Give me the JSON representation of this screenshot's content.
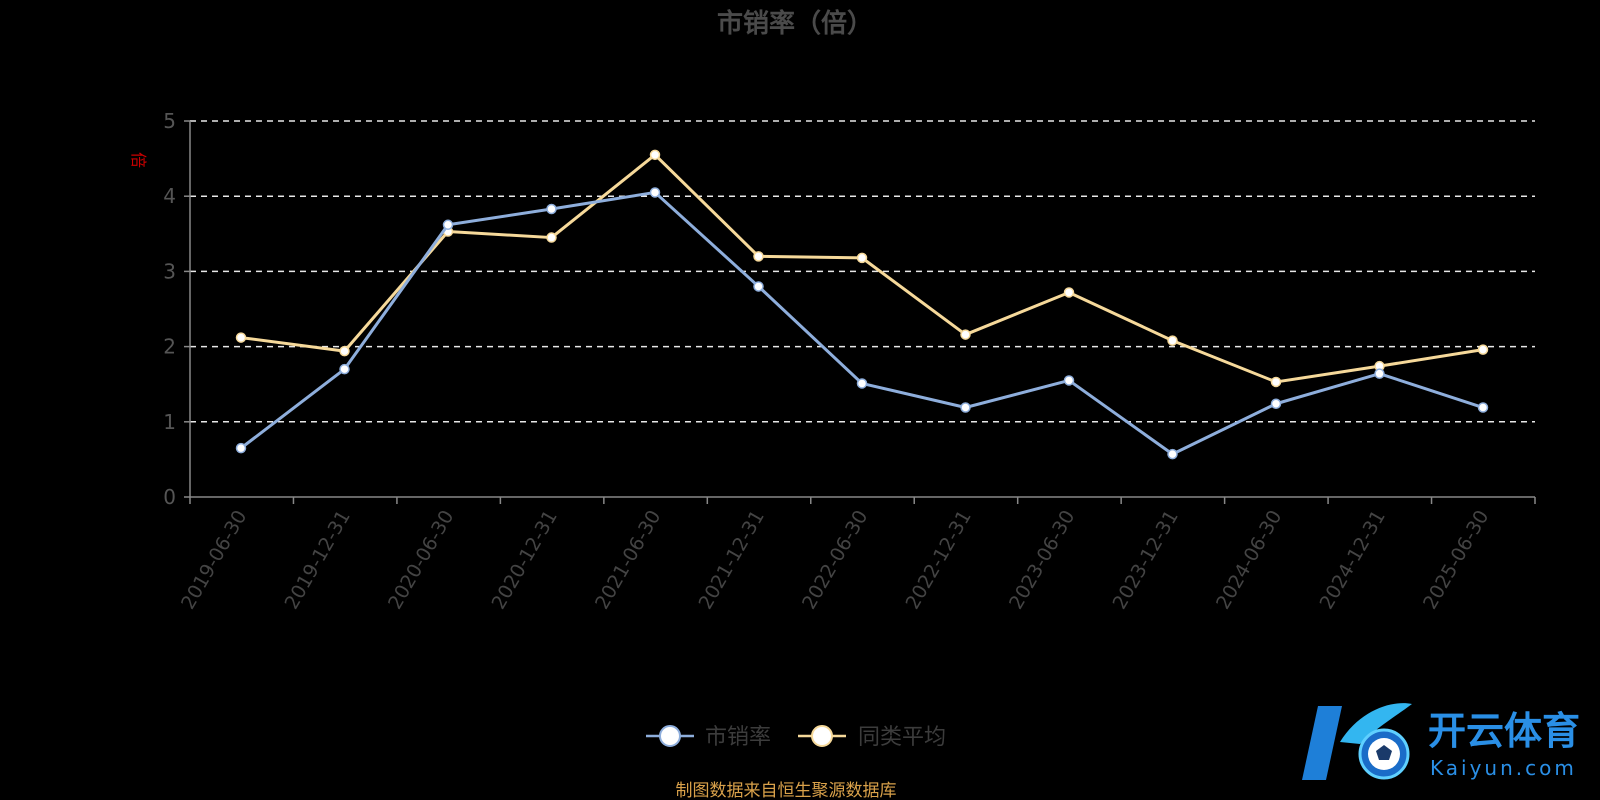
{
  "chart_data": {
    "type": "line",
    "title": "市销率（倍）",
    "y_unit_label": "倍",
    "ylim": [
      0,
      5
    ],
    "y_ticks": [
      "0",
      "1",
      "2",
      "3",
      "4",
      "5"
    ],
    "grid": true,
    "legend_position": "bottom-center",
    "categories": [
      "2019-06-30",
      "2019-12-31",
      "2020-06-30",
      "2020-12-31",
      "2021-06-30",
      "2021-12-31",
      "2022-06-30",
      "2022-12-31",
      "2023-06-30",
      "2023-12-31",
      "2024-06-30",
      "2024-12-31",
      "2025-06-30"
    ],
    "series": [
      {
        "name": "市销率",
        "color": "#8eaedc",
        "values": [
          0.65,
          1.7,
          3.62,
          3.83,
          4.05,
          2.8,
          1.51,
          1.19,
          1.55,
          0.57,
          1.24,
          1.64,
          1.19
        ]
      },
      {
        "name": "同类平均",
        "color": "#f6d99a",
        "values": [
          2.12,
          1.94,
          3.53,
          3.45,
          4.55,
          3.2,
          3.18,
          2.16,
          2.72,
          2.08,
          1.53,
          1.74,
          1.96
        ]
      }
    ]
  },
  "source_note": "制图数据来自恒生聚源数据库",
  "watermark": {
    "brand_cn": "开云体育",
    "brand_url": "Kaiyun.com",
    "logo_icon": "k-soccer-logo-icon"
  }
}
